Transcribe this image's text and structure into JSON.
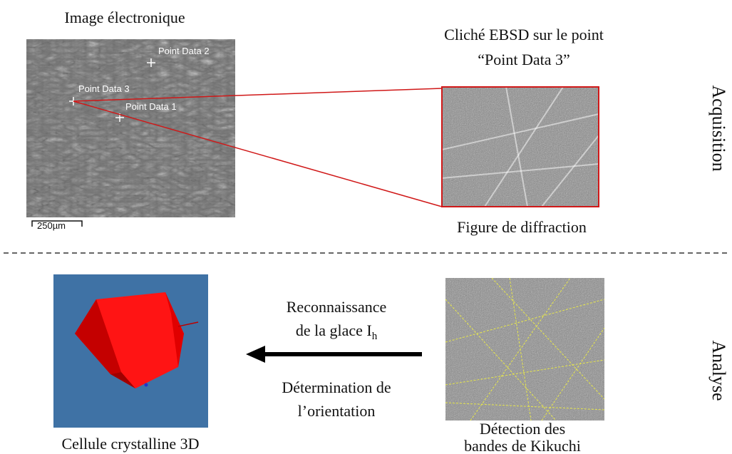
{
  "acquisition": {
    "label": "Acquisition",
    "electron_image": {
      "title": "Image électronique",
      "points": [
        "Point Data 2",
        "Point Data 3",
        "Point Data 1"
      ],
      "scale_bar": "250µm"
    },
    "ebsd_pattern": {
      "title_lines": [
        "Cliché EBSD sur le point",
        "“Point Data 3”"
      ],
      "caption": "Figure de diffraction"
    }
  },
  "analysis": {
    "label": "Analyse",
    "crystal": {
      "caption": "Cellule crystalline 3D"
    },
    "arrow": {
      "top_lines": [
        "Reconnaissance",
        "de la glace I"
      ],
      "top_subscript": "h",
      "bottom_lines": [
        "Détermination de",
        "l’orientation"
      ]
    },
    "kikuchi": {
      "caption_lines": [
        "Détection des",
        "bandes de Kikuchi"
      ]
    }
  }
}
